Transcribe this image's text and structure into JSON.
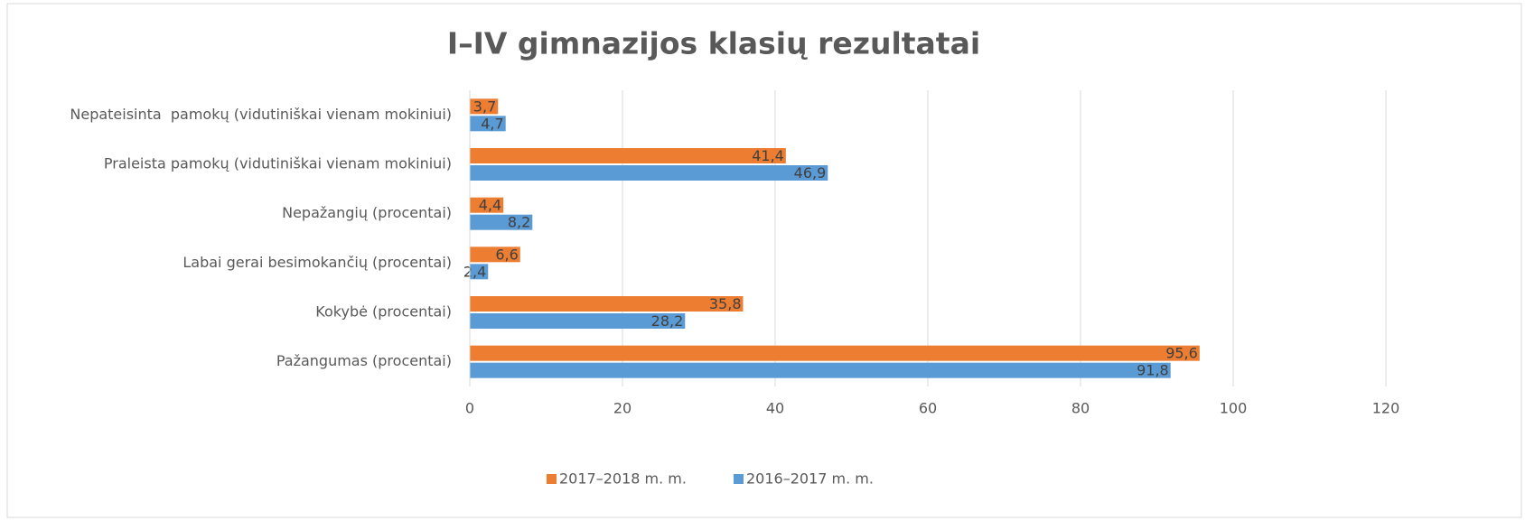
{
  "chart_data": {
    "type": "bar",
    "orientation": "horizontal",
    "title": "I–IV gimnazijos klasių rezultatai",
    "categories": [
      "Nepateisinta  pamokų (vidutiniškai vienam mokiniui)",
      "Praleista pamokų (vidutiniškai vienam mokiniui)",
      "Nepažangių (procentai)",
      "Labai gerai besimokančių (procentai)",
      "Kokybė (procentai)",
      "Pažangumas (procentai)"
    ],
    "series": [
      {
        "name": "2017–2018 m. m.",
        "color": "#ed7d31",
        "values": [
          3.7,
          41.4,
          4.4,
          6.6,
          35.8,
          95.6
        ],
        "value_labels": [
          "3,7",
          "41,4",
          "4,4",
          "6,6",
          "35,8",
          "95,6"
        ]
      },
      {
        "name": "2016–2017 m. m.",
        "color": "#5b9bd5",
        "values": [
          4.7,
          46.9,
          8.2,
          2.4,
          28.2,
          91.8
        ],
        "value_labels": [
          "4,7",
          "46,9",
          "8,2",
          "2,4",
          "28,2",
          "91,8"
        ]
      }
    ],
    "xlim": [
      0,
      120
    ],
    "xticks": [
      0,
      20,
      40,
      60,
      80,
      100,
      120
    ],
    "grid": true,
    "legend": "bottom"
  }
}
